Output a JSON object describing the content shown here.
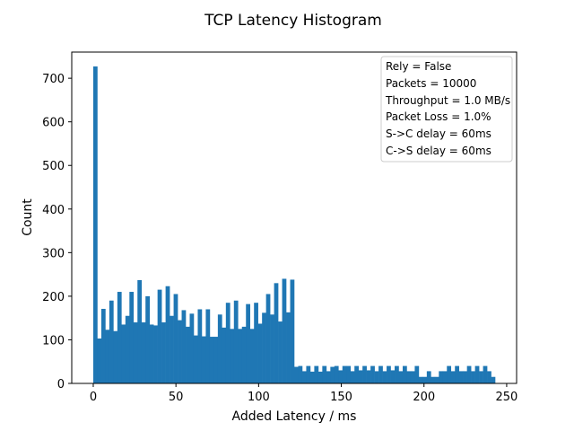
{
  "chart_data": {
    "type": "bar",
    "title": "TCP Latency Histogram",
    "xlabel": "Added Latency / ms",
    "ylabel": "Count",
    "xlim": [
      -13,
      256
    ],
    "ylim": [
      0,
      760
    ],
    "xticks": [
      0,
      50,
      100,
      150,
      200,
      250
    ],
    "yticks": [
      0,
      100,
      200,
      300,
      400,
      500,
      600,
      700
    ],
    "bin_width": 2.43,
    "bins": [
      {
        "x": 0.0,
        "count": 727
      },
      {
        "x": 2.43,
        "count": 103
      },
      {
        "x": 4.86,
        "count": 171
      },
      {
        "x": 7.29,
        "count": 123
      },
      {
        "x": 9.72,
        "count": 190
      },
      {
        "x": 12.15,
        "count": 120
      },
      {
        "x": 14.58,
        "count": 210
      },
      {
        "x": 17.01,
        "count": 135
      },
      {
        "x": 19.44,
        "count": 155
      },
      {
        "x": 21.87,
        "count": 210
      },
      {
        "x": 24.3,
        "count": 140
      },
      {
        "x": 26.73,
        "count": 237
      },
      {
        "x": 29.16,
        "count": 140
      },
      {
        "x": 31.59,
        "count": 200
      },
      {
        "x": 34.02,
        "count": 135
      },
      {
        "x": 36.45,
        "count": 133
      },
      {
        "x": 38.88,
        "count": 215
      },
      {
        "x": 41.31,
        "count": 140
      },
      {
        "x": 43.74,
        "count": 223
      },
      {
        "x": 46.17,
        "count": 155
      },
      {
        "x": 48.6,
        "count": 205
      },
      {
        "x": 51.03,
        "count": 145
      },
      {
        "x": 53.46,
        "count": 168
      },
      {
        "x": 55.89,
        "count": 130
      },
      {
        "x": 58.32,
        "count": 160
      },
      {
        "x": 60.75,
        "count": 110
      },
      {
        "x": 63.18,
        "count": 170
      },
      {
        "x": 65.61,
        "count": 108
      },
      {
        "x": 68.04,
        "count": 170
      },
      {
        "x": 70.47,
        "count": 107
      },
      {
        "x": 72.9,
        "count": 107
      },
      {
        "x": 75.33,
        "count": 158
      },
      {
        "x": 77.76,
        "count": 128
      },
      {
        "x": 80.19,
        "count": 185
      },
      {
        "x": 82.62,
        "count": 125
      },
      {
        "x": 85.05,
        "count": 190
      },
      {
        "x": 87.48,
        "count": 125
      },
      {
        "x": 89.91,
        "count": 130
      },
      {
        "x": 92.34,
        "count": 182
      },
      {
        "x": 94.77,
        "count": 125
      },
      {
        "x": 97.2,
        "count": 185
      },
      {
        "x": 99.63,
        "count": 137
      },
      {
        "x": 102.06,
        "count": 162
      },
      {
        "x": 104.49,
        "count": 205
      },
      {
        "x": 106.92,
        "count": 158
      },
      {
        "x": 109.35,
        "count": 230
      },
      {
        "x": 111.78,
        "count": 142
      },
      {
        "x": 114.21,
        "count": 240
      },
      {
        "x": 116.64,
        "count": 163
      },
      {
        "x": 119.07,
        "count": 238
      },
      {
        "x": 121.5,
        "count": 38
      },
      {
        "x": 123.93,
        "count": 40
      },
      {
        "x": 126.36,
        "count": 28
      },
      {
        "x": 128.79,
        "count": 40
      },
      {
        "x": 131.22,
        "count": 27
      },
      {
        "x": 133.65,
        "count": 40
      },
      {
        "x": 136.08,
        "count": 27
      },
      {
        "x": 138.51,
        "count": 40
      },
      {
        "x": 140.94,
        "count": 28
      },
      {
        "x": 143.37,
        "count": 38
      },
      {
        "x": 145.8,
        "count": 40
      },
      {
        "x": 148.23,
        "count": 30
      },
      {
        "x": 150.66,
        "count": 40
      },
      {
        "x": 153.09,
        "count": 40
      },
      {
        "x": 155.52,
        "count": 28
      },
      {
        "x": 157.95,
        "count": 40
      },
      {
        "x": 160.38,
        "count": 30
      },
      {
        "x": 162.81,
        "count": 40
      },
      {
        "x": 165.24,
        "count": 30
      },
      {
        "x": 167.67,
        "count": 40
      },
      {
        "x": 170.1,
        "count": 28
      },
      {
        "x": 172.53,
        "count": 40
      },
      {
        "x": 174.96,
        "count": 28
      },
      {
        "x": 177.39,
        "count": 40
      },
      {
        "x": 179.82,
        "count": 30
      },
      {
        "x": 182.25,
        "count": 40
      },
      {
        "x": 184.68,
        "count": 28
      },
      {
        "x": 187.11,
        "count": 40
      },
      {
        "x": 189.54,
        "count": 28
      },
      {
        "x": 191.97,
        "count": 28
      },
      {
        "x": 194.4,
        "count": 40
      },
      {
        "x": 196.83,
        "count": 15
      },
      {
        "x": 199.26,
        "count": 15
      },
      {
        "x": 201.69,
        "count": 28
      },
      {
        "x": 204.12,
        "count": 15
      },
      {
        "x": 206.55,
        "count": 15
      },
      {
        "x": 208.98,
        "count": 28
      },
      {
        "x": 211.41,
        "count": 28
      },
      {
        "x": 213.84,
        "count": 40
      },
      {
        "x": 216.27,
        "count": 28
      },
      {
        "x": 218.7,
        "count": 40
      },
      {
        "x": 221.13,
        "count": 28
      },
      {
        "x": 223.56,
        "count": 28
      },
      {
        "x": 225.99,
        "count": 40
      },
      {
        "x": 228.42,
        "count": 28
      },
      {
        "x": 230.85,
        "count": 40
      },
      {
        "x": 233.28,
        "count": 28
      },
      {
        "x": 235.71,
        "count": 40
      },
      {
        "x": 238.14,
        "count": 28
      },
      {
        "x": 240.57,
        "count": 15
      }
    ],
    "color": "#1f77b4",
    "legend_position": "top-right",
    "annotations": [
      "Rely = False",
      "Packets = 10000",
      "Throughput = 1.0 MB/s",
      "Packet Loss = 1.0%",
      "S->C delay = 60ms",
      "C->S delay = 60ms"
    ]
  }
}
